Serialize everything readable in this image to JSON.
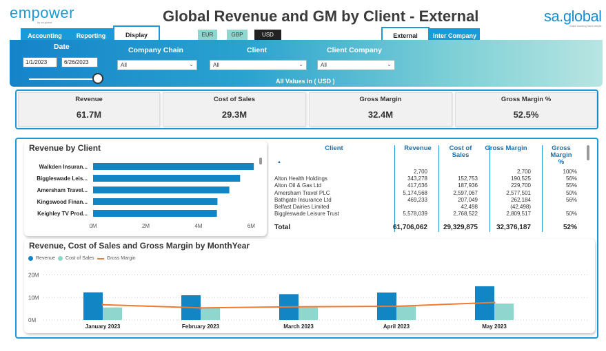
{
  "header": {
    "logo_left": "empower",
    "logo_left_sub": "by sa.global",
    "title": "Global Revenue and GM by Client - External",
    "logo_right": "sa.global",
    "logo_right_sub": "make working hard simple"
  },
  "nav_tabs": [
    {
      "label": "Accounting",
      "active": false
    },
    {
      "label": "Reporting",
      "active": false
    },
    {
      "label": "Display",
      "active": true
    }
  ],
  "currency": [
    {
      "label": "EUR",
      "active": false
    },
    {
      "label": "GBP",
      "active": false
    },
    {
      "label": "USD",
      "active": true
    }
  ],
  "scope_tabs": [
    {
      "label": "External",
      "active": true
    },
    {
      "label": "Inter Company",
      "active": false
    }
  ],
  "filters": {
    "date_label": "Date",
    "date_start": "1/1/2023",
    "date_end": "6/26/2023",
    "company_chain_label": "Company Chain",
    "company_chain_value": "All",
    "client_label": "Client",
    "client_value": "All",
    "client_company_label": "Client Company",
    "client_company_value": "All",
    "values_note": "All Values in ( USD )"
  },
  "kpis": [
    {
      "label": "Revenue",
      "value": "61.7M"
    },
    {
      "label": "Cost of Sales",
      "value": "29.3M"
    },
    {
      "label": "Gross Margin",
      "value": "32.4M"
    },
    {
      "label": "Gross Margin %",
      "value": "52.5%"
    }
  ],
  "revenue_by_client": {
    "title": "Revenue by Client",
    "bar_color": "#1286c4"
  },
  "client_table": {
    "headers": [
      "Client",
      "Revenue",
      "Cost of Sales",
      "Gross Margin",
      "Gross Margin %"
    ],
    "rows": [
      {
        "client": "",
        "revenue": "2,700",
        "cost": "",
        "gm": "2,700",
        "gm_pct": "100%"
      },
      {
        "client": "Alton Health Holdings",
        "revenue": "343,278",
        "cost": "152,753",
        "gm": "190,525",
        "gm_pct": "56%"
      },
      {
        "client": "Alton Oil & Gas Ltd",
        "revenue": "417,636",
        "cost": "187,936",
        "gm": "229,700",
        "gm_pct": "55%"
      },
      {
        "client": "Amersham Travel PLC",
        "revenue": "5,174,568",
        "cost": "2,597,067",
        "gm": "2,577,501",
        "gm_pct": "50%"
      },
      {
        "client": "Bathgate Insurance Ltd",
        "revenue": "469,233",
        "cost": "207,049",
        "gm": "262,184",
        "gm_pct": "56%"
      },
      {
        "client": "Belfast Dairies Limited",
        "revenue": "",
        "cost": "42,498",
        "gm": "(42,498)",
        "gm_pct": ""
      },
      {
        "client": "Biggleswade Leisure Trust",
        "revenue": "5,578,039",
        "cost": "2,768,522",
        "gm": "2,809,517",
        "gm_pct": "50%"
      }
    ],
    "total": {
      "client": "Total",
      "revenue": "61,706,062",
      "cost": "29,329,875",
      "gm": "32,376,187",
      "gm_pct": "52%"
    }
  },
  "monthly": {
    "title": "Revenue, Cost of Sales and Gross Margin by MonthYear"
  },
  "chart_data": [
    {
      "type": "bar",
      "orientation": "horizontal",
      "title": "Revenue by Client",
      "categories": [
        "Walkden Insuran...",
        "Biggleswade Leis...",
        "Amersham Travel...",
        "Kingswood Finan...",
        "Keighley TV Prod..."
      ],
      "values": [
        6.1,
        5.58,
        5.17,
        4.72,
        4.7
      ],
      "xticks": [
        "0M",
        "2M",
        "4M",
        "6M"
      ],
      "xlim": [
        0,
        6.2
      ],
      "unit": "M",
      "color": "#1286c4"
    },
    {
      "type": "bar",
      "title": "Revenue, Cost of Sales and Gross Margin by MonthYear",
      "categories": [
        "January 2023",
        "February 2023",
        "March 2023",
        "April 2023",
        "May 2023"
      ],
      "series": [
        {
          "name": "Revenue",
          "kind": "bar",
          "color": "#1286c4",
          "values": [
            12.3,
            11.0,
            11.5,
            12.2,
            15.0
          ]
        },
        {
          "name": "Cost of Sales",
          "kind": "bar",
          "color": "#8fd6ce",
          "values": [
            5.6,
            5.6,
            5.6,
            6.1,
            7.3
          ]
        },
        {
          "name": "Gross Margin",
          "kind": "line",
          "color": "#f07a2e",
          "values": [
            6.8,
            5.4,
            5.9,
            6.1,
            7.8
          ]
        }
      ],
      "yticks": [
        "0M",
        "10M",
        "20M"
      ],
      "ylim": [
        0,
        22
      ],
      "legend": "top-left"
    }
  ]
}
